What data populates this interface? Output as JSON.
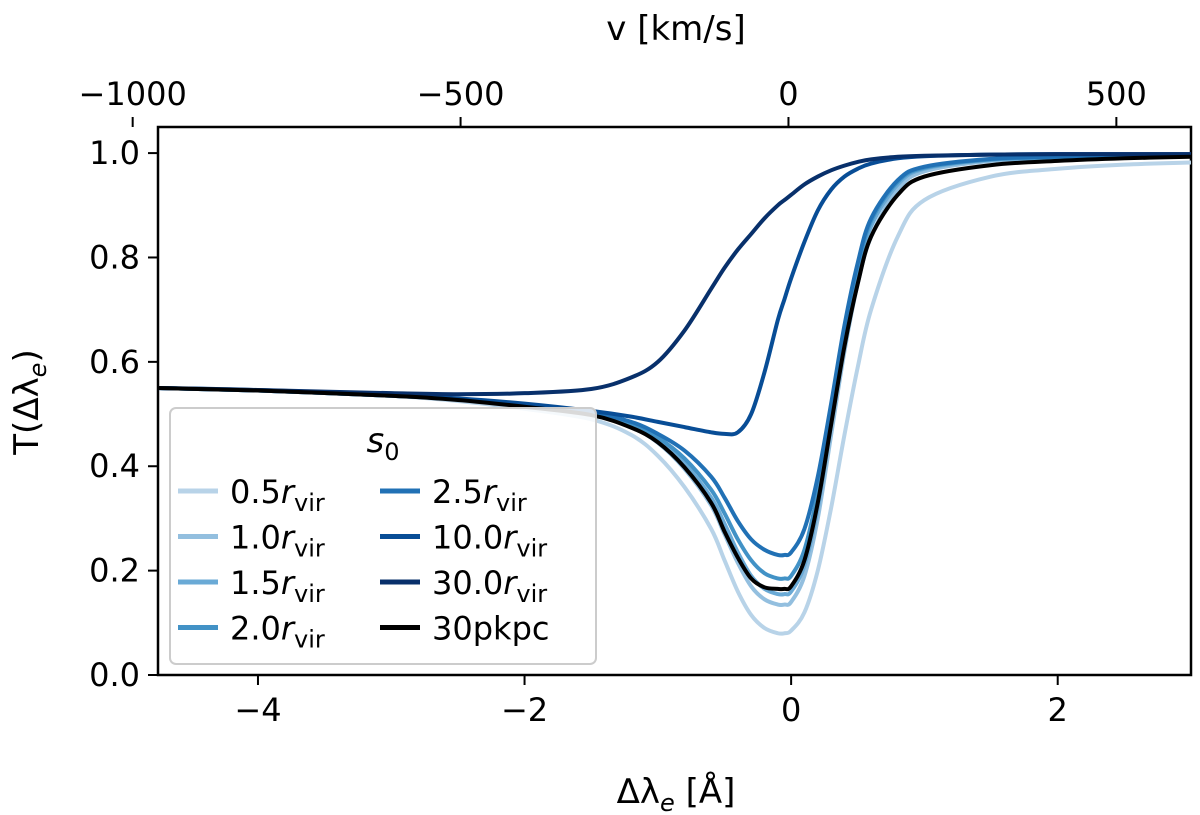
{
  "chart_data": {
    "type": "line",
    "title": "",
    "xlabel": "Δλ",
    "xlabel_sub": "e",
    "xlabel_unit": " [Å]",
    "ylabel_prefix": "T(Δλ",
    "ylabel_sub": "e",
    "ylabel_suffix": ")",
    "top_xlabel": "v [km/s]",
    "xlim": [
      -4.75,
      3.0
    ],
    "ylim": [
      0.0,
      1.05
    ],
    "xticks": [
      -4,
      -2,
      0,
      2
    ],
    "xtick_labels": [
      "−4",
      "−2",
      "0",
      "2"
    ],
    "yticks": [
      0.0,
      0.2,
      0.4,
      0.6,
      0.8,
      1.0
    ],
    "ytick_labels": [
      "0.0",
      "0.2",
      "0.4",
      "0.6",
      "0.8",
      "1.0"
    ],
    "top_ticks_kms": [
      -1000,
      -500,
      0,
      500
    ],
    "top_tick_labels": [
      "−1000",
      "−500",
      "0",
      "500"
    ],
    "top_axis_conversion": {
      "angstrom_per_kms": 0.00492,
      "zero_offset_angstrom": -0.02
    },
    "grid": false,
    "legend": {
      "title": "s",
      "title_sub": "0",
      "placement": "lower-left",
      "ncol": 2
    },
    "x": [
      -4.75,
      -4.0,
      -3.0,
      -2.5,
      -2.0,
      -1.5,
      -1.2,
      -1.0,
      -0.8,
      -0.6,
      -0.5,
      -0.4,
      -0.3,
      -0.2,
      -0.1,
      -0.05,
      0.0,
      0.1,
      0.2,
      0.3,
      0.4,
      0.5,
      0.6,
      0.8,
      1.0,
      1.5,
      2.0,
      2.5,
      3.0
    ],
    "series": [
      {
        "name": "0.5",
        "label_suffix": "r",
        "label_sub": "vir",
        "color": "#b8d3e8",
        "values": [
          0.55,
          0.545,
          0.535,
          0.525,
          0.51,
          0.49,
          0.46,
          0.42,
          0.36,
          0.28,
          0.22,
          0.16,
          0.115,
          0.09,
          0.08,
          0.08,
          0.085,
          0.12,
          0.2,
          0.32,
          0.46,
          0.59,
          0.7,
          0.84,
          0.91,
          0.955,
          0.97,
          0.978,
          0.982
        ]
      },
      {
        "name": "1.0",
        "label_suffix": "r",
        "label_sub": "vir",
        "color": "#93bfdf",
        "values": [
          0.55,
          0.545,
          0.535,
          0.528,
          0.515,
          0.5,
          0.475,
          0.445,
          0.395,
          0.325,
          0.27,
          0.215,
          0.17,
          0.145,
          0.135,
          0.135,
          0.14,
          0.19,
          0.3,
          0.46,
          0.62,
          0.75,
          0.84,
          0.93,
          0.965,
          0.985,
          0.99,
          0.993,
          0.995
        ]
      },
      {
        "name": "1.5",
        "label_suffix": "r",
        "label_sub": "vir",
        "color": "#6aaad6",
        "values": [
          0.55,
          0.545,
          0.535,
          0.528,
          0.516,
          0.5,
          0.478,
          0.45,
          0.405,
          0.34,
          0.29,
          0.235,
          0.19,
          0.165,
          0.155,
          0.155,
          0.16,
          0.21,
          0.32,
          0.48,
          0.64,
          0.77,
          0.86,
          0.94,
          0.97,
          0.987,
          0.991,
          0.994,
          0.996
        ]
      },
      {
        "name": "2.0",
        "label_suffix": "r",
        "label_sub": "vir",
        "color": "#4292c6",
        "values": [
          0.55,
          0.545,
          0.535,
          0.528,
          0.516,
          0.501,
          0.48,
          0.455,
          0.415,
          0.355,
          0.31,
          0.26,
          0.22,
          0.195,
          0.185,
          0.185,
          0.19,
          0.24,
          0.35,
          0.5,
          0.66,
          0.78,
          0.87,
          0.945,
          0.972,
          0.988,
          0.992,
          0.994,
          0.996
        ]
      },
      {
        "name": "2.5",
        "label_suffix": "r",
        "label_sub": "vir",
        "color": "#2171b5",
        "values": [
          0.55,
          0.545,
          0.535,
          0.528,
          0.517,
          0.503,
          0.485,
          0.462,
          0.43,
          0.38,
          0.34,
          0.295,
          0.26,
          0.24,
          0.23,
          0.23,
          0.235,
          0.28,
          0.38,
          0.52,
          0.67,
          0.79,
          0.875,
          0.948,
          0.974,
          0.989,
          0.993,
          0.995,
          0.996
        ]
      },
      {
        "name": "10.0",
        "label_suffix": "r",
        "label_sub": "vir",
        "color": "#084d96",
        "values": [
          0.55,
          0.546,
          0.537,
          0.53,
          0.52,
          0.506,
          0.495,
          0.485,
          0.475,
          0.465,
          0.462,
          0.465,
          0.5,
          0.58,
          0.68,
          0.72,
          0.76,
          0.83,
          0.89,
          0.93,
          0.955,
          0.97,
          0.98,
          0.99,
          0.994,
          0.997,
          0.998,
          0.998,
          0.998
        ]
      },
      {
        "name": "30.0",
        "label_suffix": "r",
        "label_sub": "vir",
        "color": "#08306b",
        "values": [
          0.55,
          0.546,
          0.54,
          0.538,
          0.54,
          0.548,
          0.57,
          0.6,
          0.66,
          0.74,
          0.78,
          0.815,
          0.845,
          0.875,
          0.9,
          0.91,
          0.92,
          0.94,
          0.955,
          0.967,
          0.976,
          0.983,
          0.988,
          0.993,
          0.995,
          0.997,
          0.998,
          0.998,
          0.998
        ]
      },
      {
        "name": "30pkpc",
        "label_suffix": "",
        "label_sub": "",
        "color": "#000000",
        "values": [
          0.55,
          0.545,
          0.535,
          0.527,
          0.514,
          0.498,
          0.474,
          0.446,
          0.398,
          0.33,
          0.275,
          0.225,
          0.185,
          0.168,
          0.165,
          0.165,
          0.17,
          0.22,
          0.33,
          0.48,
          0.63,
          0.75,
          0.84,
          0.92,
          0.955,
          0.977,
          0.985,
          0.99,
          0.993
        ]
      }
    ]
  }
}
